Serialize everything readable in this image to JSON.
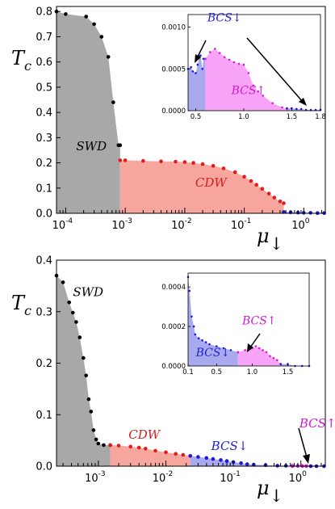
{
  "colors": {
    "swd_fill": "#a8a8a8",
    "cdw_fill": "#f7a69d",
    "bcs_down_fill": "#a9a9ee",
    "bcs_up_fill": "#f7a3f7",
    "swd_marker": "#000000",
    "cdw_marker": "#e41a1a",
    "bcs_down_marker": "#1a1ad6",
    "bcs_up_marker": "#d61ad6",
    "bcs_down_label": "#2323d0",
    "bcs_up_label": "#d21ad2",
    "cdw_label": "#d81c1c",
    "swd_label": "#000000"
  },
  "chart_data": [
    {
      "type": "area",
      "panel": "top",
      "ylabel": "T",
      "ylabel_sub": "c",
      "xlabel": "μ",
      "xlabel_sub": "↓",
      "xscale": "log",
      "xlim": [
        7e-05,
        2.3
      ],
      "ylim": [
        0,
        0.82
      ],
      "x_ticks": [
        0.0001,
        0.001,
        0.01,
        0.1,
        1
      ],
      "x_tick_exponents": [
        "-4",
        "-3",
        "-2",
        "-1",
        "0"
      ],
      "y_ticks": [
        "0.0",
        "0.1",
        "0.2",
        "0.3",
        "0.4",
        "0.5",
        "0.6",
        "0.7",
        "0.8"
      ],
      "y_tick_values": [
        0,
        0.1,
        0.2,
        0.3,
        0.4,
        0.5,
        0.6,
        0.7,
        0.8
      ],
      "regions": [
        {
          "label": "SWD",
          "label_x": 0.00015,
          "label_y": 0.25
        },
        {
          "label": "CDW",
          "label_x": 0.015,
          "label_y": 0.105
        }
      ],
      "series": [
        {
          "region": "SWD",
          "x": [
            7e-05,
            0.0001,
            0.00022,
            0.0003,
            0.0004,
            0.00052,
            0.00063,
            0.00077,
            0.00082
          ],
          "y": [
            0.8,
            0.79,
            0.78,
            0.75,
            0.7,
            0.62,
            0.44,
            0.27,
            0.27
          ]
        },
        {
          "region": "CDW",
          "x": [
            0.00082,
            0.001,
            0.002,
            0.004,
            0.007,
            0.01,
            0.014,
            0.02,
            0.03,
            0.045,
            0.07,
            0.1,
            0.13,
            0.16,
            0.2,
            0.26,
            0.32,
            0.4,
            0.46
          ],
          "y": [
            0.21,
            0.21,
            0.208,
            0.206,
            0.205,
            0.203,
            0.2,
            0.195,
            0.188,
            0.178,
            0.163,
            0.145,
            0.128,
            0.113,
            0.097,
            0.078,
            0.062,
            0.047,
            0.04
          ]
        },
        {
          "region": "BCS↓",
          "x": [
            0.46,
            0.6,
            0.8,
            1,
            1.3,
            1.7,
            2.2
          ],
          "y": [
            0.005,
            0.004,
            0.003,
            0.002,
            0.002,
            0.001,
            0.001
          ]
        }
      ],
      "inset": {
        "xlim": [
          0.42,
          1.8
        ],
        "ylim": [
          0,
          0.00115
        ],
        "x_ticks": [
          "0.5",
          "1.0",
          "1.5",
          "1.8"
        ],
        "x_tick_values": [
          0.5,
          1.0,
          1.5,
          1.8
        ],
        "y_ticks": [
          "0.0000",
          "0.0005",
          "0.0010"
        ],
        "y_tick_values": [
          0,
          0.0005,
          0.001
        ],
        "labels": [
          {
            "text": "BCS↓",
            "color_key": "bcs_down_label",
            "x": 0.8,
            "y": 0.00107
          },
          {
            "text": "BCS↑",
            "color_key": "bcs_up_label",
            "x": 1.05,
            "y": 0.0002
          }
        ],
        "series": [
          {
            "region": "BCS↓",
            "x": [
              0.42,
              0.45,
              0.47,
              0.5,
              0.52,
              0.54,
              0.55,
              0.57,
              0.58,
              0.6
            ],
            "y": [
              0.0005,
              0.00052,
              0.00047,
              0.00045,
              0.00055,
              0.00065,
              0.00066,
              0.0005,
              0.00062,
              0.00062
            ]
          },
          {
            "region": "BCS↑",
            "x": [
              0.6,
              0.65,
              0.7,
              0.75,
              0.8,
              0.85,
              0.9,
              0.95,
              1.0,
              1.05,
              1.1,
              1.15,
              1.2,
              1.3,
              1.4,
              1.45
            ],
            "y": [
              0.00062,
              0.0007,
              0.00074,
              0.00069,
              0.00064,
              0.00061,
              0.00058,
              0.00056,
              0.00055,
              0.00045,
              0.0003,
              0.00023,
              0.00018,
              9e-05,
              4e-05,
              2e-05
            ]
          },
          {
            "region": "BCS↓",
            "x": [
              1.45,
              1.5,
              1.55,
              1.6,
              1.65,
              1.7,
              1.75,
              1.8
            ],
            "y": [
              3e-05,
              3e-05,
              2e-05,
              2e-05,
              1e-05,
              1e-05,
              1e-05,
              1e-05
            ]
          }
        ]
      }
    },
    {
      "type": "area",
      "panel": "bottom",
      "ylabel": "T",
      "ylabel_sub": "c",
      "xlabel": "μ",
      "xlabel_sub": "↓",
      "xscale": "log",
      "xlim": [
        0.00024,
        2.3
      ],
      "ylim": [
        0,
        0.4
      ],
      "x_ticks": [
        0.001,
        0.01,
        0.1,
        1
      ],
      "x_tick_exponents": [
        "-3",
        "-2",
        "-1",
        "0"
      ],
      "y_ticks": [
        "0.0",
        "0.1",
        "0.2",
        "0.3",
        "0.4"
      ],
      "y_tick_values": [
        0,
        0.1,
        0.2,
        0.3,
        0.4
      ],
      "regions": [
        {
          "label": "SWD",
          "label_x": 0.00042,
          "label_y": 0.33
        },
        {
          "label": "CDW",
          "label_x": 0.0028,
          "label_y": 0.053
        },
        {
          "label": "BCS↓",
          "label_x": 0.047,
          "label_y": 0.031
        },
        {
          "label": "BCS↑",
          "label_x": 0.95,
          "label_y": 0.075
        }
      ],
      "series": [
        {
          "region": "SWD",
          "x": [
            0.00024,
            0.0003,
            0.00037,
            0.00042,
            0.00047,
            0.00053,
            0.0006,
            0.00066,
            0.00072,
            0.00078,
            0.00085,
            0.00093,
            0.001,
            0.0012,
            0.0015
          ],
          "y": [
            0.37,
            0.357,
            0.318,
            0.298,
            0.28,
            0.25,
            0.21,
            0.176,
            0.13,
            0.106,
            0.07,
            0.052,
            0.044,
            0.041,
            0.041
          ]
        },
        {
          "region": "CDW",
          "x": [
            0.0015,
            0.002,
            0.003,
            0.004,
            0.005,
            0.007,
            0.01,
            0.014,
            0.018,
            0.023
          ],
          "y": [
            0.041,
            0.04,
            0.038,
            0.036,
            0.034,
            0.03,
            0.027,
            0.024,
            0.022,
            0.02
          ]
        },
        {
          "region": "BCS↓",
          "x": [
            0.023,
            0.03,
            0.04,
            0.05,
            0.065,
            0.08,
            0.1,
            0.13,
            0.16,
            0.2,
            0.3,
            0.45,
            0.6,
            0.75
          ],
          "y": [
            0.02,
            0.018,
            0.016,
            0.014,
            0.012,
            0.01,
            0.008,
            0.006,
            0.004,
            0.003,
            0.002,
            0.001,
            0.0008,
            0.0005
          ]
        },
        {
          "region": "BCS↑",
          "x": [
            0.75,
            0.9,
            1.05,
            1.2,
            1.4
          ],
          "y": [
            0.0004,
            0.0004,
            0.0003,
            0.0002,
            0.0001
          ]
        },
        {
          "region": "BCS↓",
          "x": [
            1.4,
            1.7,
            2.2
          ],
          "y": [
            5e-05,
            3e-05,
            1e-05
          ]
        }
      ],
      "inset": {
        "xlim": [
          0.1,
          1.8
        ],
        "ylim": [
          0,
          0.00047
        ],
        "x_ticks": [
          "0.1",
          "0.5",
          "1.0",
          "1.5"
        ],
        "x_tick_values": [
          0.1,
          0.5,
          1.0,
          1.5
        ],
        "y_ticks": [
          "0.0000",
          "0.0002",
          "0.0004"
        ],
        "y_tick_values": [
          0,
          0.0002,
          0.0004
        ],
        "labels": [
          {
            "text": "BCS↑",
            "color_key": "bcs_up_label",
            "x": 1.1,
            "y": 0.00021
          },
          {
            "text": "BCS↓",
            "color_key": "bcs_down_label",
            "x": 0.45,
            "y": 5e-05
          }
        ],
        "series": [
          {
            "region": "BCS↓",
            "x": [
              0.1,
              0.12,
              0.15,
              0.18,
              0.2,
              0.25,
              0.3,
              0.35,
              0.4,
              0.5,
              0.6,
              0.7,
              0.8
            ],
            "y": [
              0.00045,
              0.00038,
              0.00025,
              0.0002,
              0.00016,
              0.00014,
              0.00013,
              0.00012,
              0.00011,
              0.0001,
              9e-05,
              8e-05,
              7e-05
            ]
          },
          {
            "region": "BCS↑",
            "x": [
              0.8,
              0.9,
              1.0,
              1.05,
              1.1,
              1.15,
              1.2,
              1.25,
              1.3,
              1.35,
              1.4
            ],
            "y": [
              7e-05,
              8e-05,
              9e-05,
              0.0001,
              9e-05,
              8e-05,
              7e-05,
              5e-05,
              4e-05,
              3e-05,
              1e-05
            ]
          },
          {
            "region": "BCS↓",
            "x": [
              1.4,
              1.5,
              1.6,
              1.7,
              1.8
            ],
            "y": [
              1e-05,
              1e-05,
              0.0,
              0.0,
              0.0
            ]
          }
        ]
      }
    }
  ]
}
